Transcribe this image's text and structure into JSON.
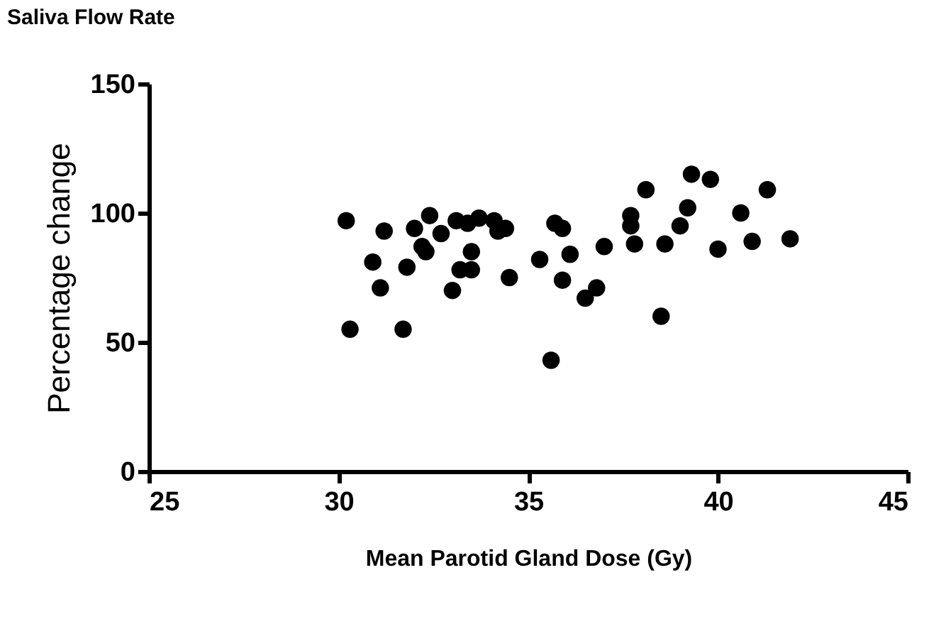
{
  "chart_data": {
    "type": "scatter",
    "title": "Saliva Flow Rate",
    "xlabel": "Mean Parotid Gland Dose (Gy)",
    "ylabel": "Percentage change",
    "xlim": [
      25,
      45
    ],
    "xticks": [
      25,
      30,
      35,
      40,
      45
    ],
    "ylim": [
      0,
      150
    ],
    "yticks": [
      0,
      50,
      100,
      150
    ],
    "grid": false,
    "marker": "circle",
    "series": [
      {
        "color": "#000000",
        "x": [
          30.2,
          30.3,
          30.9,
          31.1,
          31.2,
          31.7,
          31.8,
          32.0,
          32.2,
          32.3,
          32.4,
          32.7,
          33.1,
          33.0,
          33.2,
          33.5,
          33.5,
          33.4,
          33.7,
          34.1,
          34.2,
          34.4,
          34.5,
          35.3,
          35.6,
          35.7,
          35.9,
          35.9,
          36.1,
          36.5,
          37.0,
          36.8,
          38.1,
          37.7,
          37.7,
          37.8,
          38.6,
          38.5,
          39.3,
          39.8,
          39.2,
          39.0,
          40.0,
          40.6,
          40.9,
          41.3,
          41.9
        ],
        "values": [
          97,
          55,
          81,
          71,
          93,
          55,
          79,
          94,
          87,
          85,
          99,
          92,
          97,
          70,
          78,
          78,
          85,
          96,
          98,
          97,
          93,
          94,
          75,
          82,
          43,
          96,
          94,
          74,
          84,
          67,
          87,
          71,
          109,
          99,
          95,
          88,
          88,
          60,
          115,
          113,
          102,
          95,
          86,
          100,
          89,
          109,
          90
        ]
      }
    ]
  }
}
